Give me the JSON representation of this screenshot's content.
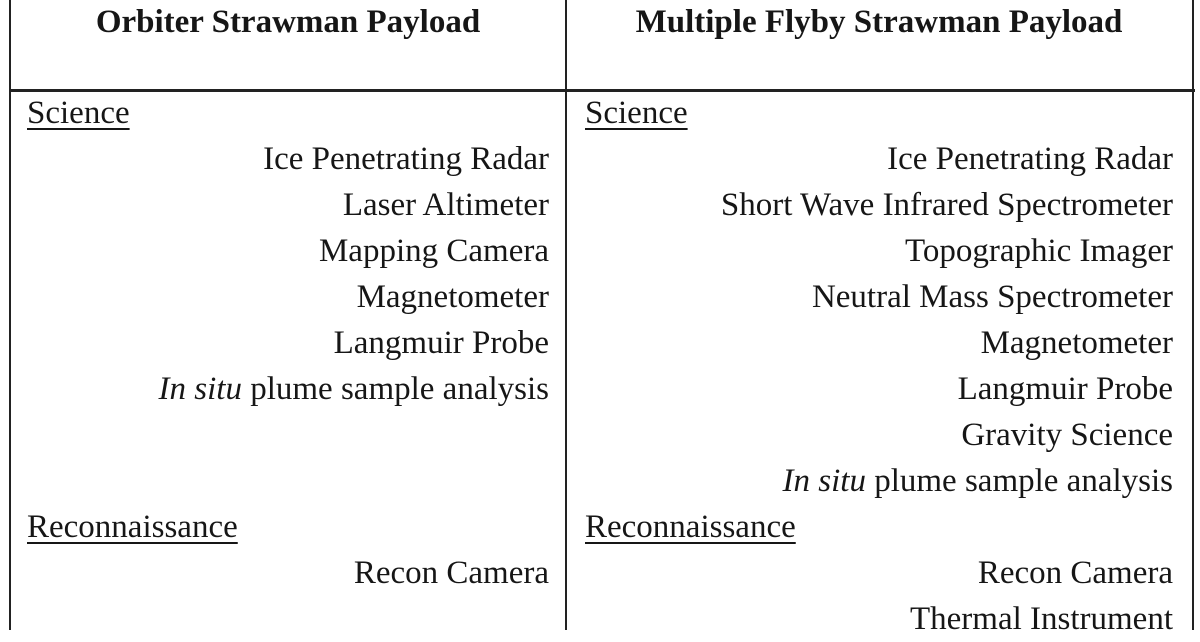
{
  "table": {
    "columns": [
      {
        "header": "Orbiter Strawman Payload",
        "sections": [
          {
            "title": "Science",
            "items": [
              {
                "text": "Ice Penetrating Radar"
              },
              {
                "text": "Laser Altimeter"
              },
              {
                "text": "Mapping Camera"
              },
              {
                "text": "Magnetometer"
              },
              {
                "text": "Langmuir Probe"
              },
              {
                "italic": "In situ",
                "text": " plume sample analysis"
              }
            ]
          },
          {
            "title": "Reconnaissance",
            "items": [
              {
                "text": "Recon Camera"
              }
            ]
          }
        ]
      },
      {
        "header": "Multiple Flyby Strawman Payload",
        "sections": [
          {
            "title": "Science",
            "items": [
              {
                "text": "Ice Penetrating Radar"
              },
              {
                "text": "Short Wave Infrared Spectrometer"
              },
              {
                "text": "Topographic Imager"
              },
              {
                "text": "Neutral Mass Spectrometer"
              },
              {
                "text": "Magnetometer"
              },
              {
                "text": "Langmuir Probe"
              },
              {
                "text": "Gravity Science"
              },
              {
                "italic": "In situ",
                "text": " plume sample analysis"
              }
            ]
          },
          {
            "title": "Reconnaissance",
            "items": [
              {
                "text": "Recon Camera"
              },
              {
                "text": "Thermal Instrument"
              }
            ]
          }
        ]
      }
    ]
  }
}
